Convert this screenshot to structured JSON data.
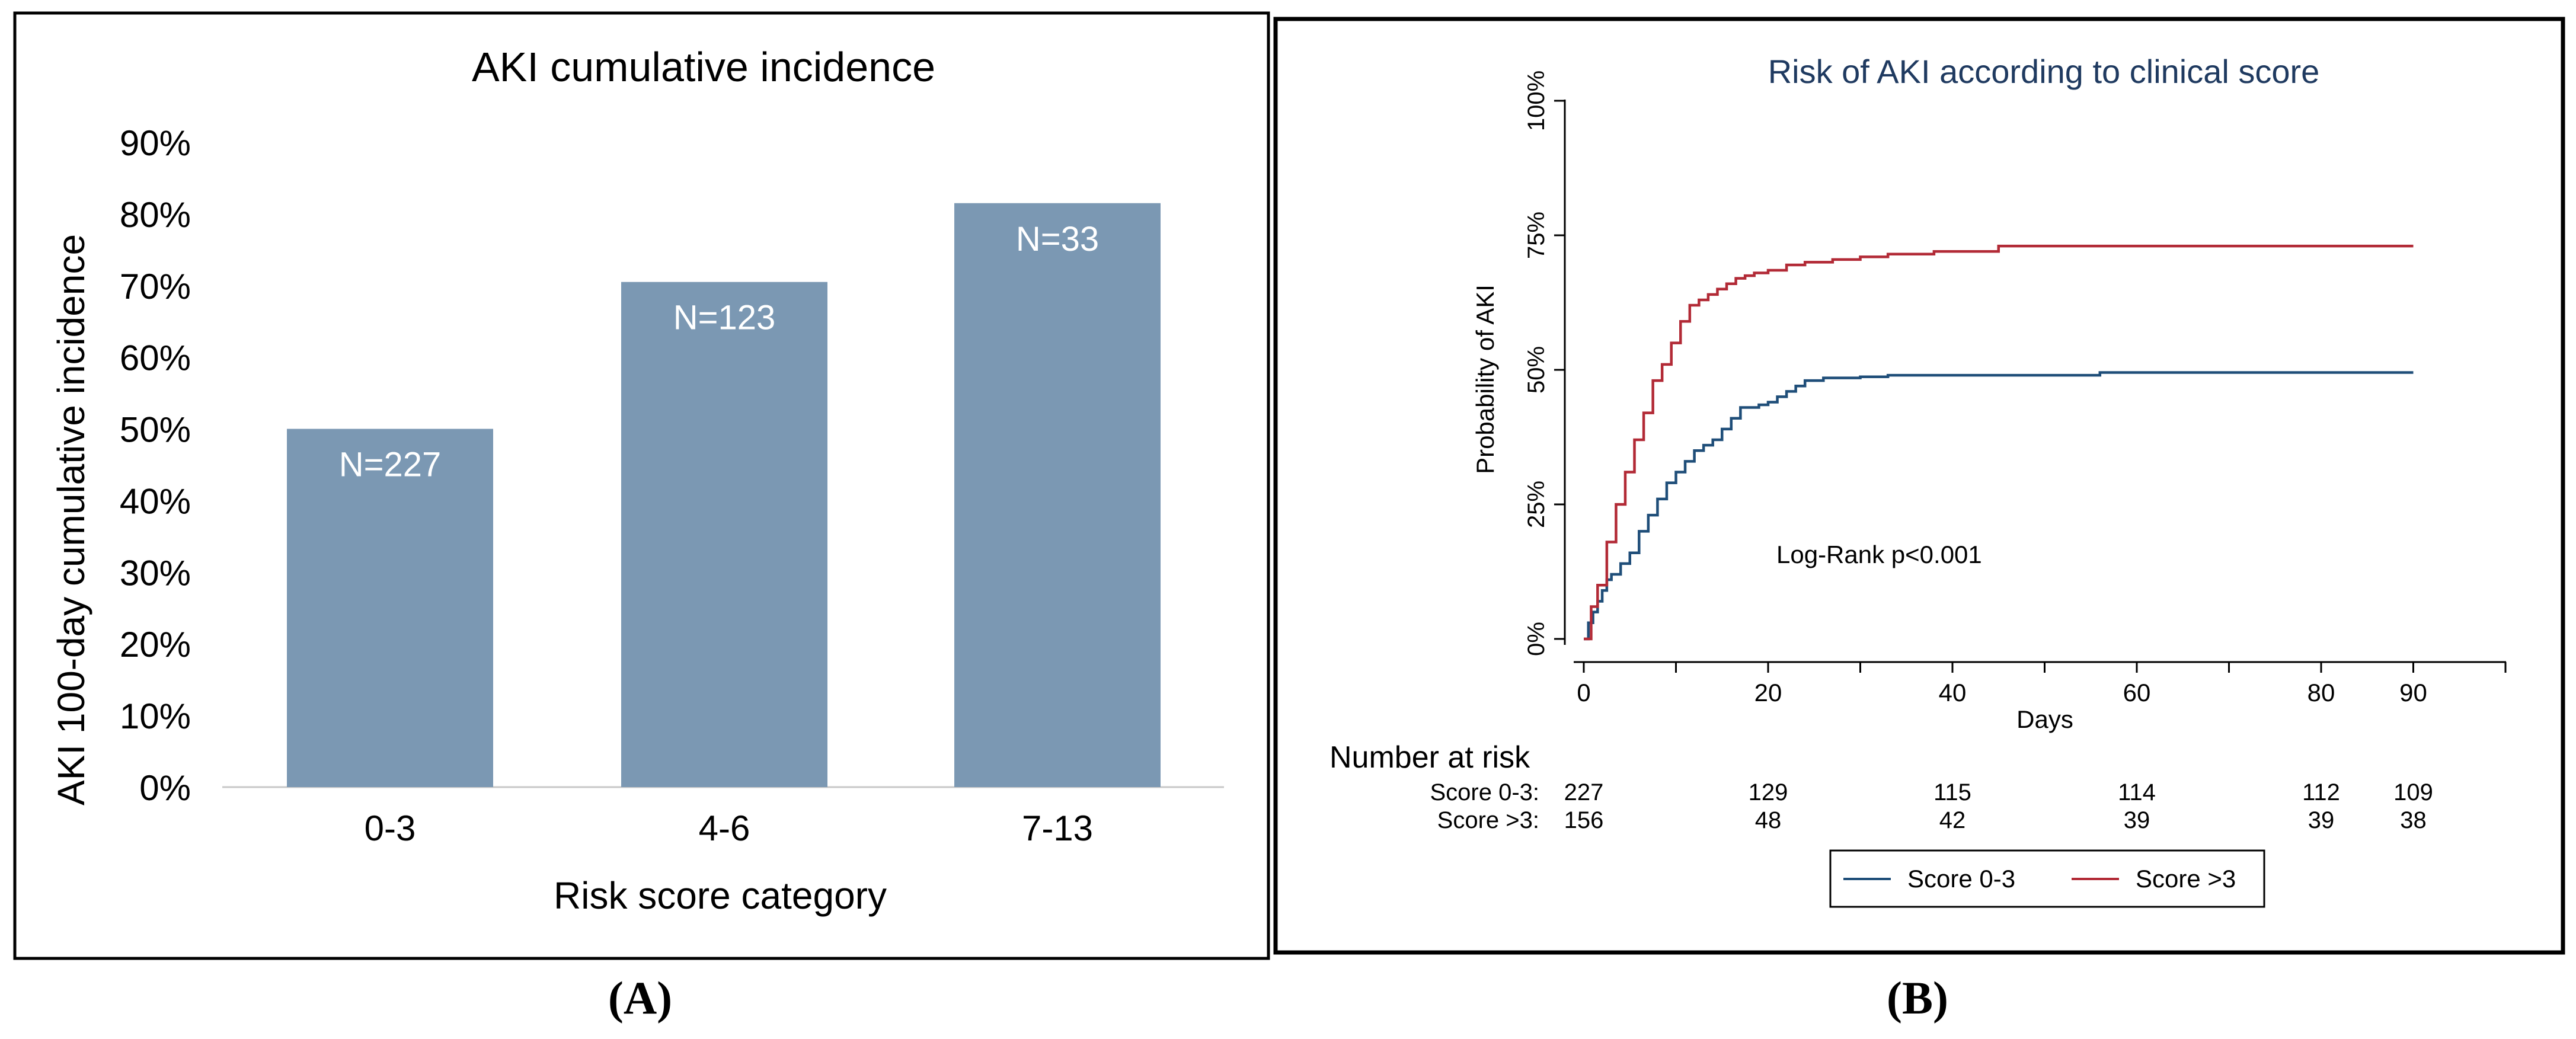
{
  "colors": {
    "bar": "#7b98b3",
    "bar_label": "#ffffff",
    "score_low": "#1f4e79",
    "score_high": "#b22a36",
    "title_b": "#1f3a60"
  },
  "panel_a": {
    "label": "(A)"
  },
  "panel_b": {
    "label": "(B)",
    "annotation": "Log-Rank p<0.001",
    "risk_table": {
      "header": "Number at risk",
      "rows": [
        {
          "name": "Score 0-3:",
          "values": [
            "227",
            "129",
            "115",
            "114",
            "112",
            "109"
          ]
        },
        {
          "name": "Score >3:",
          "values": [
            "156",
            "48",
            "42",
            "39",
            "39",
            "38"
          ]
        }
      ],
      "at_days": [
        0,
        20,
        40,
        60,
        80,
        90
      ]
    },
    "legend": [
      {
        "label": "Score 0-3",
        "color_key": "score_low"
      },
      {
        "label": "Score >3",
        "color_key": "score_high"
      }
    ]
  },
  "chart_data": [
    {
      "type": "bar",
      "title": "AKI cumulative incidence",
      "xlabel": "Risk score category",
      "ylabel": "AKI 100-day cumulative incidence",
      "categories": [
        "0-3",
        "4-6",
        "7-13"
      ],
      "values": [
        50,
        70.5,
        81.5
      ],
      "bar_labels": [
        "N=227",
        "N=123",
        "N=33"
      ],
      "ylim": [
        0,
        90
      ],
      "yticks": [
        0,
        10,
        20,
        30,
        40,
        50,
        60,
        70,
        80,
        90
      ],
      "ytick_labels": [
        "0%",
        "10%",
        "20%",
        "30%",
        "40%",
        "50%",
        "60%",
        "70%",
        "80%",
        "90%"
      ],
      "grid": false
    },
    {
      "type": "line",
      "title": "Risk of AKI according to clinical score",
      "xlabel": "Days",
      "ylabel": "Probability of AKI",
      "xlim": [
        0,
        100
      ],
      "ylim": [
        0,
        1
      ],
      "xticks": [
        0,
        20,
        40,
        60,
        80,
        90
      ],
      "xtick_labels": [
        "0",
        "20",
        "40",
        "60",
        "80",
        "90"
      ],
      "yticks": [
        0,
        0.25,
        0.5,
        0.75,
        1
      ],
      "ytick_labels": [
        "0%",
        "25%",
        "50%",
        "75%",
        "100%"
      ],
      "series": [
        {
          "name": "Score 0-3",
          "x": [
            0,
            0.5,
            1,
            1.5,
            2,
            2.5,
            3,
            4,
            5,
            6,
            7,
            8,
            9,
            10,
            11,
            12,
            13,
            14,
            15,
            16,
            17,
            19,
            20,
            21,
            22,
            23,
            24,
            26,
            30,
            33,
            56,
            90
          ],
          "y": [
            0,
            0.03,
            0.05,
            0.07,
            0.09,
            0.11,
            0.12,
            0.14,
            0.16,
            0.2,
            0.23,
            0.26,
            0.29,
            0.31,
            0.33,
            0.35,
            0.36,
            0.37,
            0.39,
            0.41,
            0.43,
            0.435,
            0.44,
            0.45,
            0.46,
            0.47,
            0.48,
            0.485,
            0.487,
            0.49,
            0.495,
            0.495
          ]
        },
        {
          "name": "Score >3",
          "x": [
            0,
            0.8,
            1.5,
            2.5,
            3.5,
            4.5,
            5.5,
            6.5,
            7.5,
            8.5,
            9.5,
            10.5,
            11.5,
            12.5,
            13.5,
            14.5,
            15.5,
            16.5,
            17.5,
            18.5,
            20,
            22,
            24,
            27,
            30,
            33,
            38,
            45,
            90
          ],
          "y": [
            0,
            0.06,
            0.1,
            0.18,
            0.25,
            0.31,
            0.37,
            0.42,
            0.48,
            0.51,
            0.55,
            0.59,
            0.62,
            0.63,
            0.64,
            0.65,
            0.66,
            0.67,
            0.675,
            0.68,
            0.685,
            0.695,
            0.7,
            0.705,
            0.71,
            0.715,
            0.72,
            0.73,
            0.73
          ]
        }
      ]
    }
  ]
}
